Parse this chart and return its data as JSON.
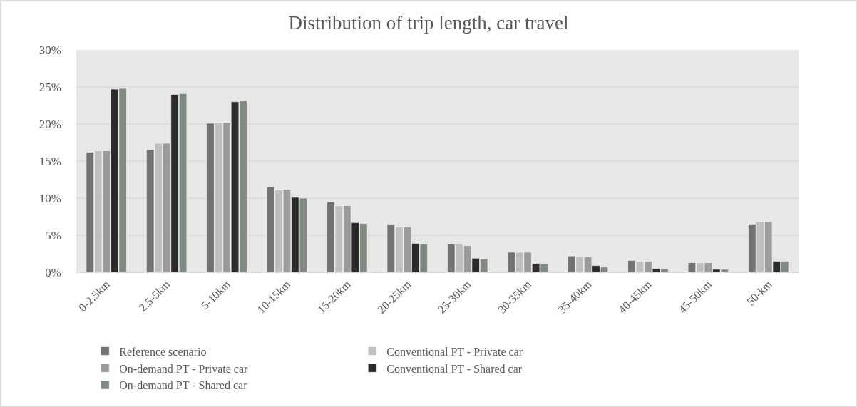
{
  "chart_data": {
    "type": "bar",
    "title": "Distribution of trip length, car travel",
    "categories": [
      "0-2.5km",
      "2.5-5km",
      "5-10km",
      "10-15km",
      "15-20km",
      "20-25km",
      "25-30km",
      "30-35km",
      "35-40km",
      "40-45km",
      "45-50km",
      "50-km"
    ],
    "series": [
      {
        "name": "Reference scenario",
        "color": "#737373",
        "values": [
          16.2,
          16.5,
          20.1,
          11.5,
          9.5,
          6.5,
          3.8,
          2.7,
          2.2,
          1.6,
          1.3,
          6.5
        ]
      },
      {
        "name": "Conventional PT - Private car",
        "color": "#bfbfbf",
        "values": [
          16.4,
          17.4,
          20.2,
          11.1,
          9.0,
          6.1,
          3.8,
          2.7,
          2.1,
          1.5,
          1.3,
          6.8
        ]
      },
      {
        "name": "On-demand PT - Private car",
        "color": "#9b9b9b",
        "values": [
          16.4,
          17.4,
          20.2,
          11.2,
          9.0,
          6.1,
          3.6,
          2.7,
          2.1,
          1.5,
          1.3,
          6.8
        ]
      },
      {
        "name": "Conventional PT - Shared car",
        "color": "#2b2b2b",
        "values": [
          24.7,
          24.0,
          23.0,
          10.1,
          6.7,
          3.9,
          1.9,
          1.2,
          0.9,
          0.5,
          0.4,
          1.5
        ]
      },
      {
        "name": "On-demand PT - Shared car",
        "color": "#7f8a80",
        "values": [
          24.8,
          24.1,
          23.2,
          10.0,
          6.6,
          3.8,
          1.8,
          1.2,
          0.7,
          0.5,
          0.4,
          1.5
        ]
      }
    ],
    "ylim": [
      0,
      30
    ],
    "yticks": [
      {
        "value": 0,
        "label": "0%"
      },
      {
        "value": 5,
        "label": "5%"
      },
      {
        "value": 10,
        "label": "10%"
      },
      {
        "value": 15,
        "label": "15%"
      },
      {
        "value": 20,
        "label": "20%"
      },
      {
        "value": 25,
        "label": "25%"
      },
      {
        "value": 30,
        "label": "30%"
      }
    ],
    "grid": "y",
    "legend": "bottom"
  }
}
